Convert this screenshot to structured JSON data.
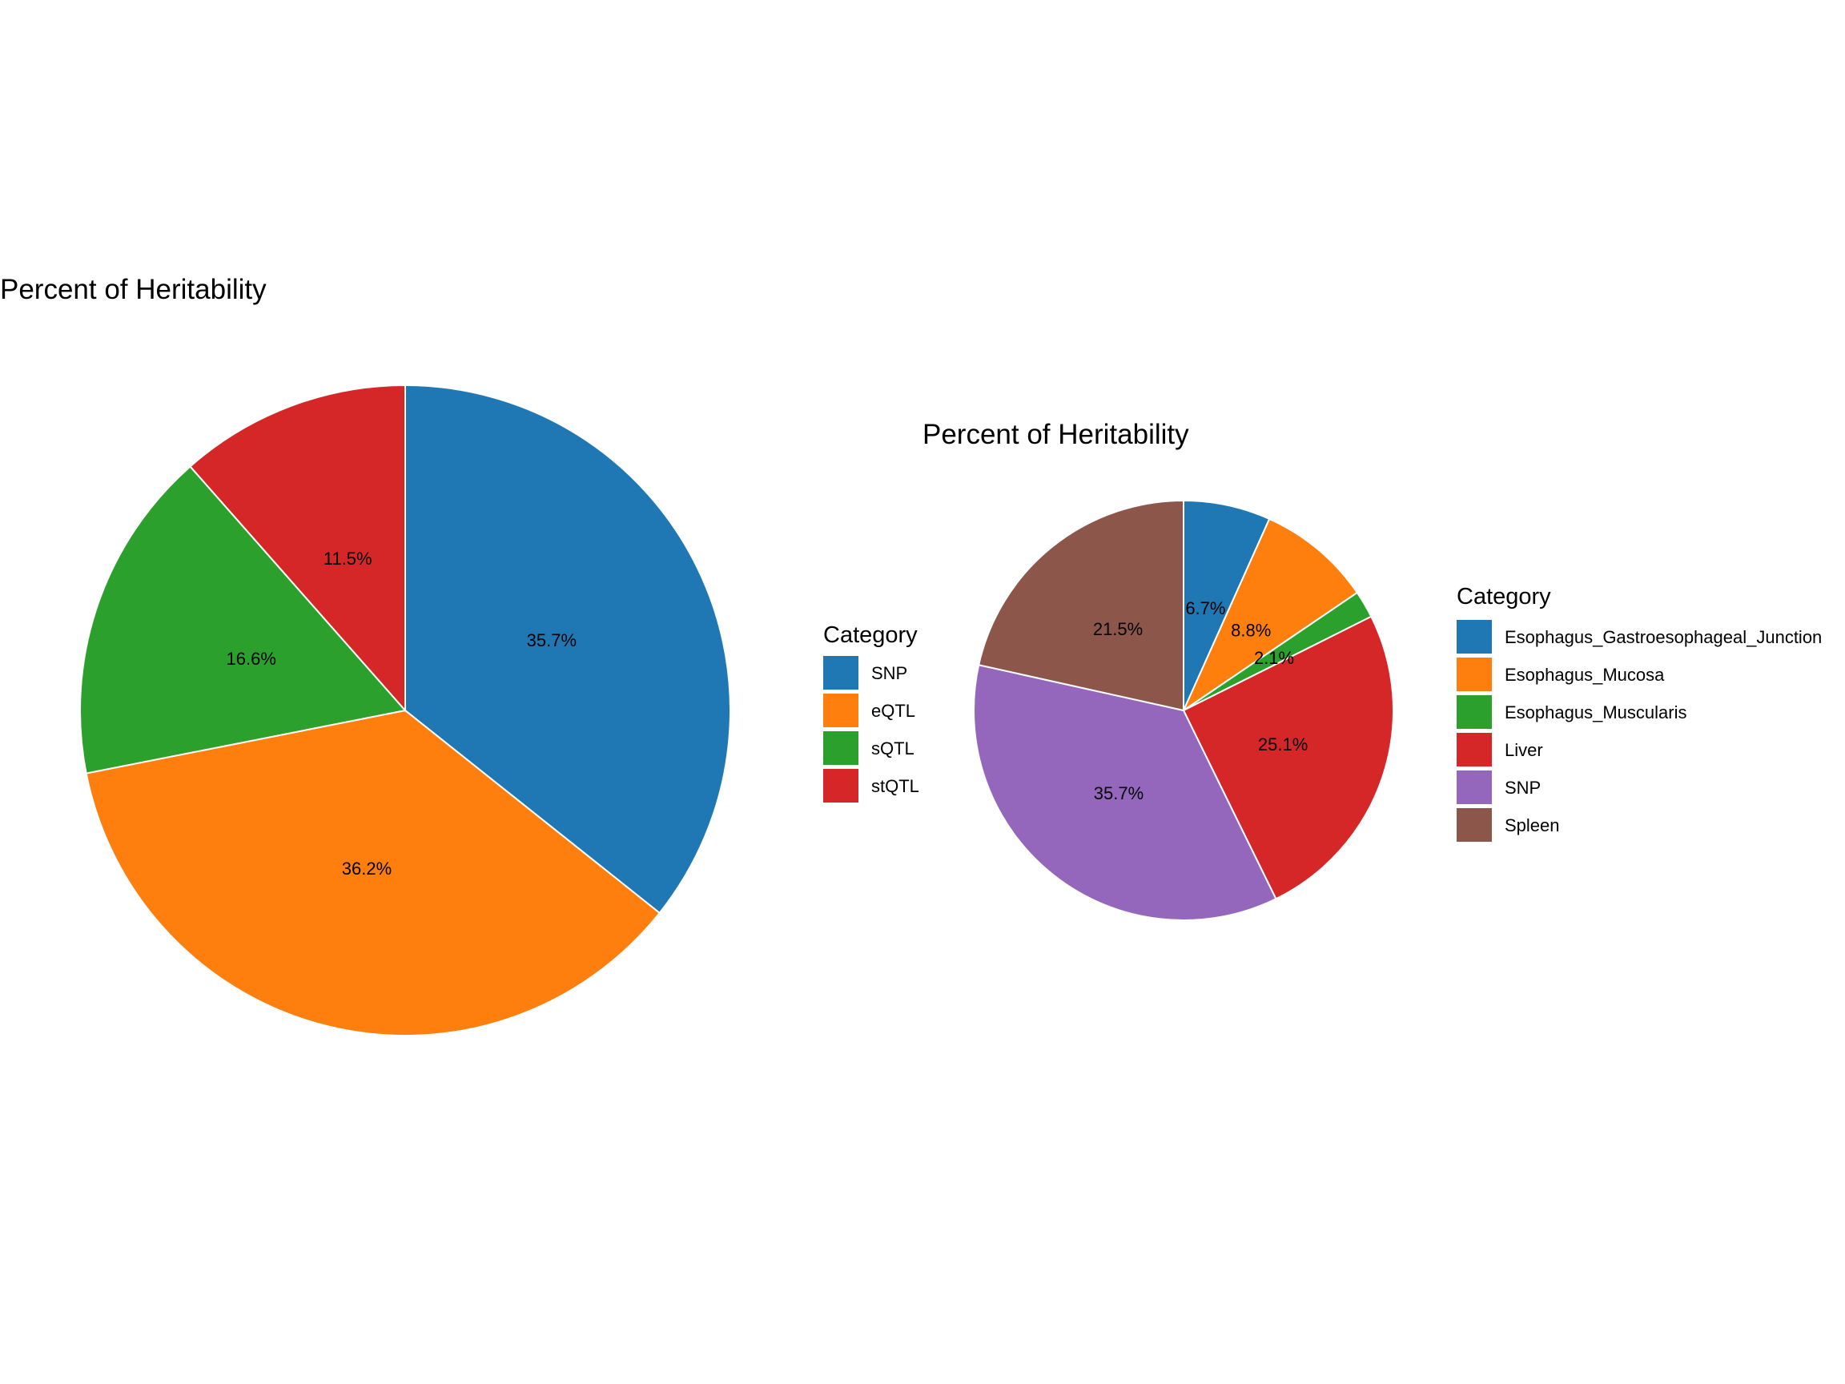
{
  "chart_data": [
    {
      "type": "pie",
      "title": "Percent of Heritability",
      "legend_title": "Category",
      "legend_position": "right",
      "direction": "clockwise from top",
      "slices": [
        {
          "label": "SNP",
          "value": 35.7,
          "text": "35.7%",
          "color": "#1f77b4"
        },
        {
          "label": "eQTL",
          "value": 36.2,
          "text": "36.2%",
          "color": "#ff7f0e"
        },
        {
          "label": "sQTL",
          "value": 16.6,
          "text": "16.6%",
          "color": "#2ca02c"
        },
        {
          "label": "stQTL",
          "value": 11.5,
          "text": "11.5%",
          "color": "#d62728"
        }
      ]
    },
    {
      "type": "pie",
      "title": "Percent of Heritability",
      "legend_title": "Category",
      "legend_position": "right",
      "direction": "clockwise from top",
      "slices": [
        {
          "label": "Esophagus_Gastroesophageal_Junction",
          "value": 6.7,
          "text": "6.7%",
          "color": "#1f77b4"
        },
        {
          "label": "Esophagus_Mucosa",
          "value": 8.8,
          "text": "8.8%",
          "color": "#ff7f0e"
        },
        {
          "label": "Esophagus_Muscularis",
          "value": 2.1,
          "text": "2.1%",
          "color": "#2ca02c"
        },
        {
          "label": "Liver",
          "value": 25.1,
          "text": "25.1%",
          "color": "#d62728"
        },
        {
          "label": "SNP",
          "value": 35.7,
          "text": "35.7%",
          "color": "#9467bd"
        },
        {
          "label": "Spleen",
          "value": 21.5,
          "text": "21.5%",
          "color": "#8c564b"
        }
      ]
    }
  ]
}
